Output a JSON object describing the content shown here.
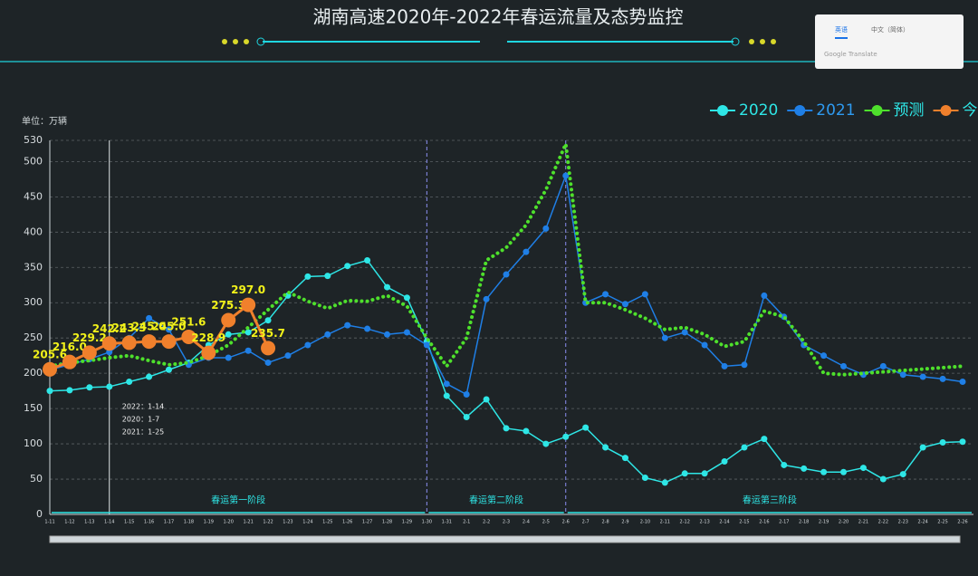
{
  "header": {
    "title": "湖南高速2020年-2022年春运流量及态势监控"
  },
  "translate_popup": {
    "tabs": [
      "英语",
      "中文（简体）"
    ],
    "footer": "Google Translate"
  },
  "chart_data": {
    "type": "line",
    "unit_label": "单位：万辆",
    "categories": [
      "1-11",
      "1-12",
      "1-13",
      "1-14",
      "1-15",
      "1-16",
      "1-17",
      "1-18",
      "1-19",
      "1-20",
      "1-21",
      "1-22",
      "1-23",
      "1-24",
      "1-25",
      "1-26",
      "1-27",
      "1-28",
      "1-29",
      "1-30",
      "1-31",
      "2-1",
      "2-2",
      "2-3",
      "2-4",
      "2-5",
      "2-6",
      "2-7",
      "2-8",
      "2-9",
      "2-10",
      "2-11",
      "2-12",
      "2-13",
      "2-14",
      "2-15",
      "2-16",
      "2-17",
      "2-18",
      "2-19",
      "2-20",
      "2-21",
      "2-22",
      "2-23",
      "2-24",
      "2-25",
      "2-26"
    ],
    "series": [
      {
        "name": "2020",
        "color": "#2ee6e6",
        "style": "solid",
        "values": [
          175,
          176,
          180,
          181,
          188,
          195,
          205,
          215,
          240,
          255,
          258,
          275,
          310,
          337,
          338,
          352,
          360,
          322,
          307,
          245,
          168,
          138,
          163,
          122,
          118,
          100,
          110,
          123,
          95,
          80,
          52,
          45,
          58,
          58,
          75,
          95,
          107,
          70,
          65,
          60,
          60,
          66,
          50,
          57,
          95,
          102,
          103
        ]
      },
      {
        "name": "2021",
        "color": "#1f7fe6",
        "style": "solid",
        "values": [
          205,
          212,
          220,
          230,
          250,
          278,
          262,
          212,
          222,
          222,
          232,
          215,
          225,
          240,
          255,
          268,
          263,
          255,
          258,
          240,
          185,
          170,
          305,
          340,
          372,
          405,
          480,
          300,
          312,
          298,
          312,
          250,
          258,
          240,
          210,
          212,
          310,
          280,
          240,
          225,
          210,
          198,
          210,
          198,
          195,
          192,
          188
        ]
      },
      {
        "name": "预测",
        "color": "#4ee02c",
        "style": "dotted",
        "values": [
          210,
          215,
          218,
          222,
          225,
          218,
          212,
          215,
          225,
          240,
          265,
          290,
          315,
          302,
          292,
          303,
          302,
          310,
          295,
          250,
          210,
          250,
          360,
          378,
          410,
          460,
          525,
          300,
          300,
          290,
          278,
          262,
          265,
          255,
          238,
          245,
          288,
          280,
          245,
          200,
          198,
          200,
          202,
          204,
          206,
          208,
          210
        ]
      },
      {
        "name": "今",
        "color": "#f0802c",
        "style": "big",
        "label_color": "#f2f21a",
        "values": [
          205.6,
          216.0,
          229.2,
          242.2,
          243.3,
          245.0,
          245.0,
          251.6,
          228.9,
          275.3,
          297.0,
          235.7,
          null,
          null,
          null,
          null,
          null,
          null,
          null,
          null,
          null,
          null,
          null,
          null,
          null,
          null,
          null,
          null,
          null,
          null,
          null,
          null,
          null,
          null,
          null,
          null,
          null,
          null,
          null,
          null,
          null,
          null,
          null,
          null,
          null,
          null,
          null
        ],
        "value_labels": [
          "205.6",
          "216.0",
          "229.2",
          "242.2",
          "243.3",
          "245.0",
          "245.0",
          "251.6",
          "228.9",
          "275.3",
          "297.0",
          "235.7",
          null,
          null,
          null,
          null,
          null,
          null,
          null,
          null,
          null,
          null,
          null,
          null,
          null,
          null,
          null,
          null,
          null,
          null,
          null,
          null,
          null,
          null,
          null,
          null,
          null,
          null,
          null,
          null,
          null,
          null,
          null,
          null,
          null,
          null,
          null
        ]
      }
    ],
    "ylim": [
      0,
      530
    ],
    "yticks": [
      0,
      50,
      100,
      150,
      200,
      250,
      300,
      350,
      400,
      450,
      500,
      530
    ],
    "grid": true,
    "marker": {
      "x": "1-14",
      "lines": [
        "2022：1-14",
        "2020：1-7",
        "2021：1-25"
      ]
    },
    "phases": [
      {
        "label": "春运第一阶段",
        "end": "1-30"
      },
      {
        "label": "春运第二阶段",
        "end": "2-6"
      },
      {
        "label": "春运第三阶段",
        "end": "2-26"
      }
    ]
  }
}
